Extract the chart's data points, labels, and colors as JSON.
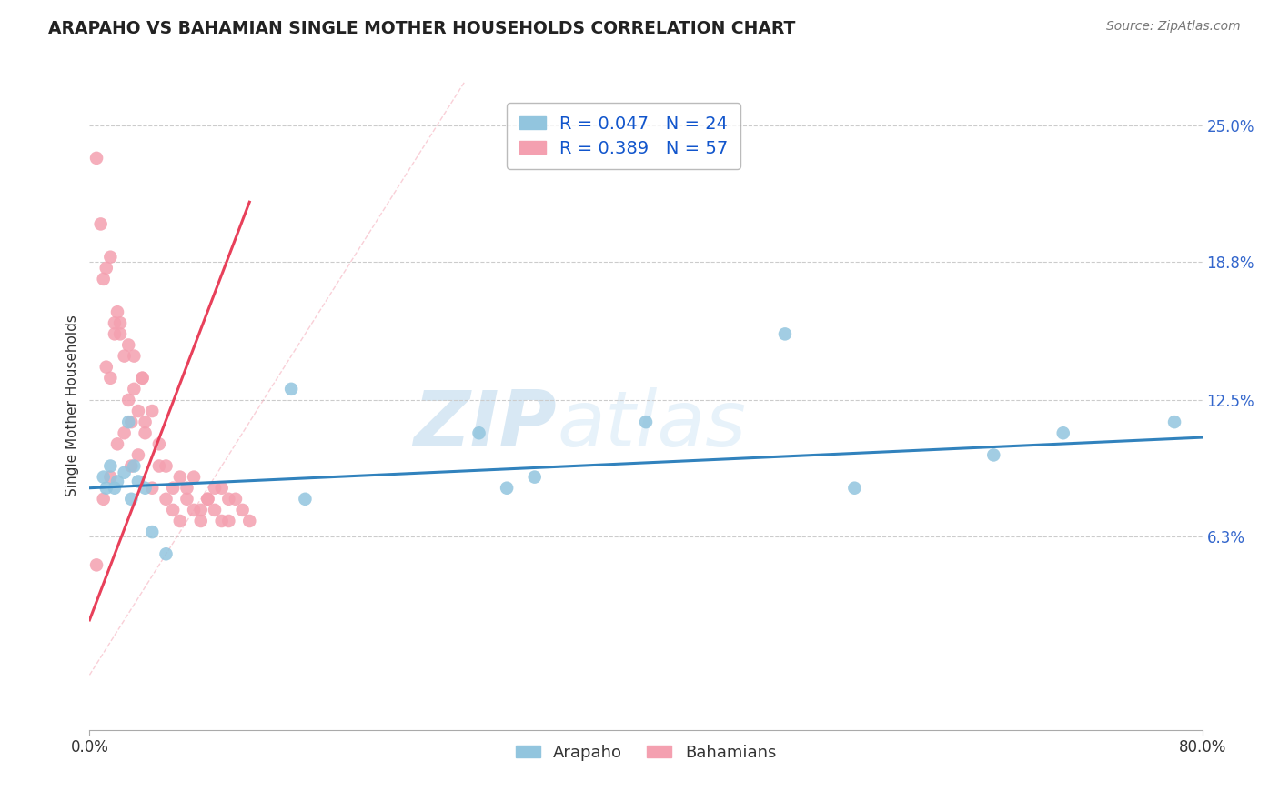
{
  "title": "ARAPAHO VS BAHAMIAN SINGLE MOTHER HOUSEHOLDS CORRELATION CHART",
  "source_text": "Source: ZipAtlas.com",
  "ylabel": "Single Mother Households",
  "xlabel_ticks_labels": [
    "0.0%",
    "80.0%"
  ],
  "xlabel_ticks_pos": [
    0.0,
    80.0
  ],
  "ylabel_ticks": [
    "6.3%",
    "12.5%",
    "18.8%",
    "25.0%"
  ],
  "ylabel_vals": [
    6.3,
    12.5,
    18.8,
    25.0
  ],
  "xlim": [
    0.0,
    80.0
  ],
  "ylim": [
    -2.5,
    27.0
  ],
  "arapaho_R": "0.047",
  "arapaho_N": "24",
  "bahamian_R": "0.389",
  "bahamian_N": "57",
  "arapaho_color": "#92c5de",
  "bahamian_color": "#f4a0b0",
  "arapaho_line_color": "#3182bd",
  "bahamian_line_color": "#e8405a",
  "diagonal_color": "#f4a0b0",
  "watermark_zip": "ZIP",
  "watermark_atlas": "atlas",
  "arapaho_x": [
    1.2,
    1.5,
    2.8,
    3.2,
    14.5,
    3.0,
    2.0,
    2.5,
    3.5,
    4.0,
    15.5,
    28.0,
    50.0,
    55.0,
    65.0,
    70.0,
    4.5,
    5.5,
    1.0,
    1.8,
    30.0,
    32.0,
    40.0,
    78.0
  ],
  "arapaho_y": [
    8.5,
    9.5,
    11.5,
    9.5,
    13.0,
    8.0,
    8.8,
    9.2,
    8.8,
    8.5,
    8.0,
    11.0,
    15.5,
    8.5,
    10.0,
    11.0,
    6.5,
    5.5,
    9.0,
    8.5,
    8.5,
    9.0,
    11.5,
    11.5
  ],
  "bahamian_x": [
    0.5,
    0.8,
    1.0,
    1.2,
    1.5,
    1.8,
    2.0,
    2.2,
    2.5,
    2.8,
    3.0,
    3.2,
    3.5,
    3.8,
    4.0,
    4.5,
    5.0,
    5.5,
    6.0,
    6.5,
    7.0,
    7.5,
    8.0,
    8.5,
    9.0,
    9.5,
    10.0,
    10.5,
    11.0,
    11.5,
    1.0,
    1.5,
    2.0,
    2.5,
    3.0,
    3.5,
    4.0,
    4.5,
    5.0,
    5.5,
    6.0,
    6.5,
    7.0,
    7.5,
    8.0,
    8.5,
    9.0,
    9.5,
    10.0,
    1.2,
    1.8,
    2.2,
    2.8,
    3.2,
    3.8,
    0.5,
    1.5
  ],
  "bahamian_y": [
    23.5,
    20.5,
    18.0,
    18.5,
    19.0,
    16.0,
    16.5,
    15.5,
    14.5,
    12.5,
    11.5,
    13.0,
    12.0,
    13.5,
    11.0,
    12.0,
    10.5,
    9.5,
    8.5,
    9.0,
    8.0,
    7.5,
    7.0,
    8.0,
    7.5,
    8.5,
    7.0,
    8.0,
    7.5,
    7.0,
    8.0,
    9.0,
    10.5,
    11.0,
    9.5,
    10.0,
    11.5,
    8.5,
    9.5,
    8.0,
    7.5,
    7.0,
    8.5,
    9.0,
    7.5,
    8.0,
    8.5,
    7.0,
    8.0,
    14.0,
    15.5,
    16.0,
    15.0,
    14.5,
    13.5,
    5.0,
    13.5
  ],
  "trend_blue_x0": 0.0,
  "trend_blue_x1": 80.0,
  "trend_blue_y0": 8.5,
  "trend_blue_y1": 10.8,
  "trend_pink_x0": 0.0,
  "trend_pink_x1": 11.5,
  "trend_pink_y0": 2.5,
  "trend_pink_y1": 21.5
}
